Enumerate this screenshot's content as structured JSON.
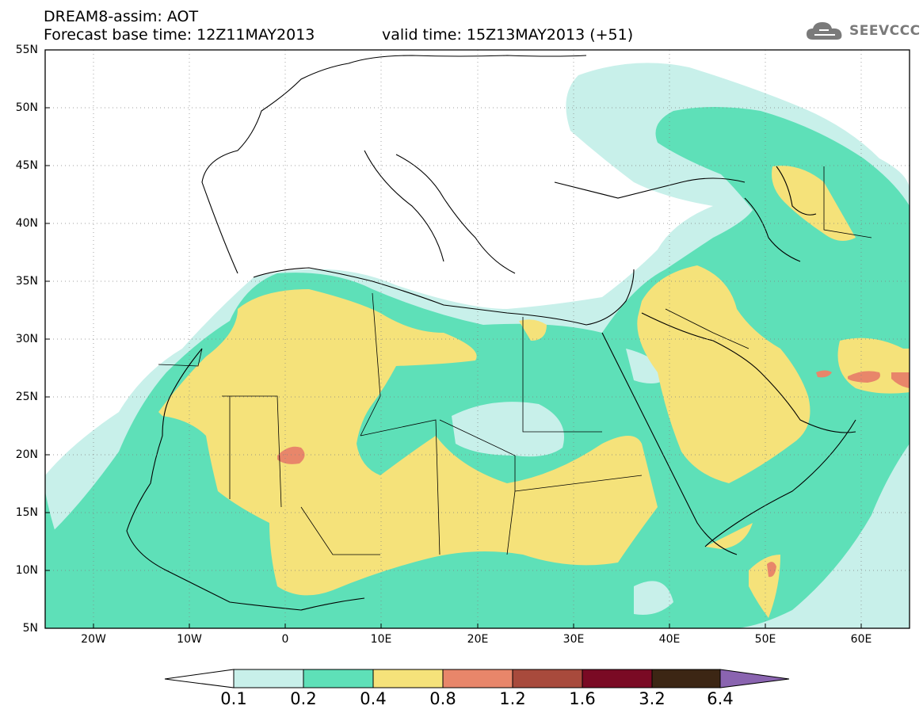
{
  "header": {
    "title": "DREAM8-assim: AOT",
    "base_time": "Forecast base time: 12Z11MAY2013",
    "valid_time": "valid time: 15Z13MAY2013 (+51)"
  },
  "logo": {
    "text": "SEEVCCC",
    "icon": "cloud-icon",
    "color": "#7a7a7a"
  },
  "axes": {
    "lat_labels": [
      "55N",
      "50N",
      "45N",
      "40N",
      "35N",
      "30N",
      "25N",
      "20N",
      "15N",
      "10N",
      "5N"
    ],
    "lon_labels": [
      "20W",
      "10W",
      "0",
      "10E",
      "20E",
      "30E",
      "40E",
      "50E",
      "60E"
    ],
    "lat_range": [
      5,
      55
    ],
    "lon_range": [
      -25,
      65
    ],
    "grid": "dotted"
  },
  "colorbar": {
    "levels": [
      "0.1",
      "0.2",
      "0.4",
      "0.8",
      "1.2",
      "1.6",
      "3.2",
      "6.4"
    ],
    "colors": [
      "#c8f0ea",
      "#5ee0b8",
      "#f5e27a",
      "#e8866a",
      "#a84a3c",
      "#7a0a24",
      "#3c2614",
      "#8a64b0"
    ],
    "under_color": "#ffffff",
    "over_color": "#8a64b0"
  }
}
